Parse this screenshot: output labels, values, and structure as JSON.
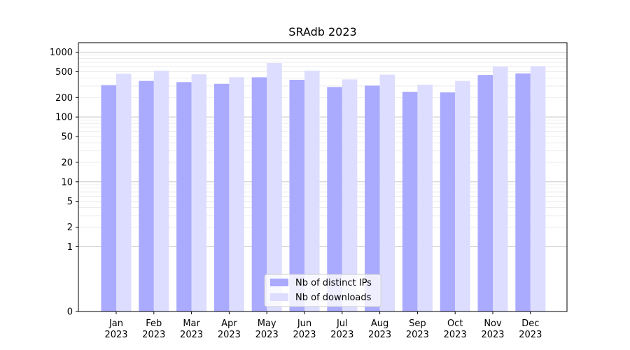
{
  "chart_data": {
    "type": "bar",
    "title": "SRAdb 2023",
    "xlabel": "",
    "ylabel": "",
    "yscale": "symlog",
    "ylim": [
      0,
      1400
    ],
    "yticks": [
      0,
      1,
      2,
      5,
      10,
      20,
      50,
      100,
      200,
      500,
      1000
    ],
    "grid": "horizontal",
    "legend_position": "bottom-center",
    "categories": [
      [
        "Jan",
        "2023"
      ],
      [
        "Feb",
        "2023"
      ],
      [
        "Mar",
        "2023"
      ],
      [
        "Apr",
        "2023"
      ],
      [
        "May",
        "2023"
      ],
      [
        "Jun",
        "2023"
      ],
      [
        "Jul",
        "2023"
      ],
      [
        "Aug",
        "2023"
      ],
      [
        "Sep",
        "2023"
      ],
      [
        "Oct",
        "2023"
      ],
      [
        "Nov",
        "2023"
      ],
      [
        "Dec",
        "2023"
      ]
    ],
    "series": [
      {
        "name": "Nb of distinct IPs",
        "color": "#aaaaff",
        "values": [
          310,
          360,
          345,
          325,
          410,
          375,
          290,
          305,
          245,
          240,
          445,
          470
        ]
      },
      {
        "name": "Nb of downloads",
        "color": "#ddddff",
        "values": [
          465,
          520,
          455,
          410,
          680,
          520,
          380,
          450,
          315,
          360,
          600,
          610
        ]
      }
    ]
  }
}
